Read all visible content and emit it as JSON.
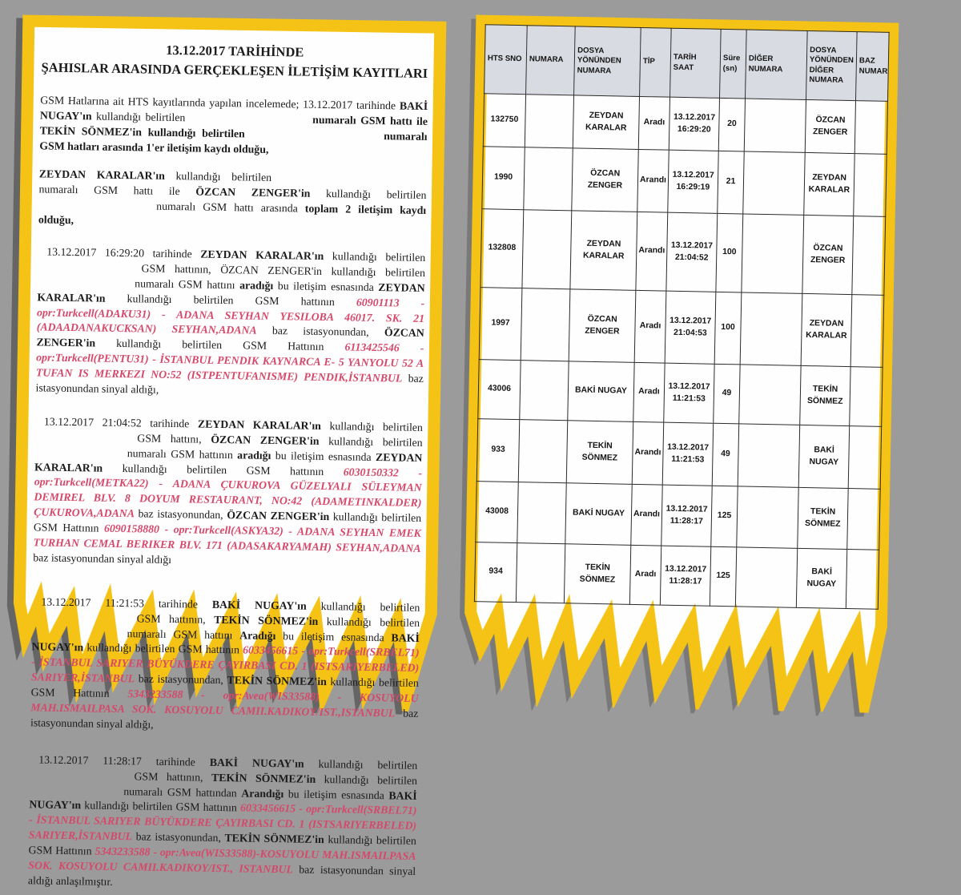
{
  "colors": {
    "background": "#9b9b9b",
    "paper": "#fefefe",
    "border_yellow": "#f5c315",
    "text": "#1b1b1b",
    "red_text": "#d6486a",
    "table_header_bg": "#d9dbe2",
    "table_line": "#2a2a2a"
  },
  "left_document": {
    "title_line1": "13.12.2017 TARİHİNDE",
    "title_line2": "ŞAHISLAR ARASINDA GERÇEKLEŞEN İLETİŞİM KAYITLARI",
    "paragraphs": [
      {
        "indent": false,
        "segments": [
          {
            "t": "GSM Hatlarına ait HTS kayıtlarında yapılan incelemede; 13.12.2017 tarihinde ",
            "s": "n"
          },
          {
            "t": "BAKİ NUGAY'ın",
            "s": "b"
          },
          {
            "t": " kullandığı belirtilen ",
            "s": "n"
          },
          {
            "gap": 148
          },
          {
            "t": " numaralı GSM hattı ile TEKİN SÖNMEZ'in kullandığı belirtilen ",
            "s": "b"
          },
          {
            "gap": 158
          },
          {
            "t": " numaralı GSM hatları arasında 1'er iletişim kaydı olduğu,",
            "s": "b"
          }
        ]
      },
      {
        "indent": false,
        "segments": [
          {
            "t": "ZEYDAN KARALAR'ın",
            "s": "b"
          },
          {
            "t": " kullandığı belirtilen ",
            "s": "n"
          },
          {
            "gap": 180
          },
          {
            "t": " numaralı GSM hattı ile ",
            "s": "n"
          },
          {
            "t": "ÖZCAN ZENGER'in",
            "s": "b"
          },
          {
            "t": " kullandığı belirtilen ",
            "s": "n"
          },
          {
            "gap": 138
          },
          {
            "t": " numaralı GSM hattı arasında ",
            "s": "n"
          },
          {
            "t": "toplam 2 iletişim kaydı olduğu,",
            "s": "b"
          }
        ]
      },
      {
        "indent": true,
        "segments": [
          {
            "t": "13.12.2017 16:29:20 tarihinde ",
            "s": "n"
          },
          {
            "t": "ZEYDAN KARALAR'ın",
            "s": "b"
          },
          {
            "t": " kullandığı belirtilen ",
            "s": "n"
          },
          {
            "gap": 118
          },
          {
            "t": " GSM hattının, ÖZCAN ZENGER'in kullandığı belirtilen ",
            "s": "n"
          },
          {
            "gap": 116
          },
          {
            "t": " numaralı GSM hattını ",
            "s": "n"
          },
          {
            "t": "aradığı",
            "s": "b"
          },
          {
            "t": " bu iletişim esnasında ",
            "s": "n"
          },
          {
            "t": "ZEYDAN KARALAR'ın",
            "s": "b"
          },
          {
            "t": " kullandığı belirtilen GSM hattının ",
            "s": "n"
          },
          {
            "t": "60901113 - opr:Turkcell(ADAKU31) - ADANA SEYHAN YESILOBA 46017. SK. 21 (ADAADANAKUCKSAN) SEYHAN,ADANA",
            "s": "r"
          },
          {
            "t": " baz istasyonundan, ",
            "s": "n"
          },
          {
            "t": "ÖZCAN ZENGER'in",
            "s": "b"
          },
          {
            "t": " kullandığı belirtilen GSM Hattının ",
            "s": "n"
          },
          {
            "t": "6113425546 - opr:Turkcell(PENTU31) - İSTANBUL PENDIK KAYNARCA E- 5 YANYOLU 52 A TUFAN IS MERKEZI NO:52 (ISTPENTUFANISME) PENDIK,İSTANBUL",
            "s": "r"
          },
          {
            "t": " baz istasyonundan sinyal aldığı,",
            "s": "n"
          }
        ]
      },
      {
        "indent": true,
        "segments": [
          {
            "t": "13.12.2017 21:04:52 tarihinde ",
            "s": "n"
          },
          {
            "t": "ZEYDAN KARALAR'ın",
            "s": "b"
          },
          {
            "t": " kullandığı belirtilen ",
            "s": "n"
          },
          {
            "gap": 116
          },
          {
            "t": " GSM hattını, ",
            "s": "n"
          },
          {
            "t": "ÖZCAN ZENGER'in",
            "s": "b"
          },
          {
            "t": " kullandığı belirtilen ",
            "s": "n"
          },
          {
            "gap": 110
          },
          {
            "t": " numaralı GSM hattının ",
            "s": "n"
          },
          {
            "t": "aradığı",
            "s": "b"
          },
          {
            "t": " bu iletişim esnasında ",
            "s": "n"
          },
          {
            "t": "ZEYDAN KARALAR'ın",
            "s": "b"
          },
          {
            "t": " kullandığı belirtilen GSM hattının ",
            "s": "n"
          },
          {
            "t": "6030150332 - opr:Turkcell(METKA22) - ADANA ÇUKUROVA GÜZELYALI SÜLEYMAN DEMIREL BLV. 8 DOYUM RESTAURANT, NO:42 (ADAMETINKALDER) ÇUKUROVA,ADANA",
            "s": "r"
          },
          {
            "t": " baz istasyonundan, ",
            "s": "n"
          },
          {
            "t": "ÖZCAN ZENGER'in",
            "s": "b"
          },
          {
            "t": " kullandığı belirtilen GSM Hattının ",
            "s": "n"
          },
          {
            "t": "6090158880 - opr:Turkcell(ASKYA32) - ADANA SEYHAN EMEK TURHAN CEMAL BERIKER BLV. 171 (ADASAKARYAMAH) SEYHAN,ADANA",
            "s": "r"
          },
          {
            "t": " baz istasyonundan sinyal aldığı",
            "s": "n"
          }
        ]
      },
      {
        "indent": true,
        "segments": [
          {
            "t": "13.12.2017 11:21:53 tarihinde ",
            "s": "n"
          },
          {
            "t": "BAKİ NUGAY'ın",
            "s": "b"
          },
          {
            "t": " kullandığı belirtilen ",
            "s": "n"
          },
          {
            "gap": 120
          },
          {
            "t": " GSM hattının, ",
            "s": "n"
          },
          {
            "t": "TEKİN SÖNMEZ'in",
            "s": "b"
          },
          {
            "t": " kullandığı belirtilen ",
            "s": "n"
          },
          {
            "gap": 110
          },
          {
            "t": " numaralı GSM hattını ",
            "s": "n"
          },
          {
            "t": "Aradığı",
            "s": "b"
          },
          {
            "t": " bu iletişim esnasında ",
            "s": "n"
          },
          {
            "t": "BAKİ NUGAY'ın",
            "s": "b"
          },
          {
            "t": " kullandığı belirtilen GSM hattının ",
            "s": "n"
          },
          {
            "t": "6033456615 - opr:Turkcell(SRBEL71) - İSTANBUL SARIYER BÜYÜKDERE ÇAYIRBASI CD. 1 (ISTSARIYERBELED) SARIYER,İSTANBUL",
            "s": "r"
          },
          {
            "t": " baz istasyonundan, ",
            "s": "n"
          },
          {
            "t": "TEKİN SÖNMEZ'in",
            "s": "b"
          },
          {
            "t": " kullandığı belirtilen GSM Hattının ",
            "s": "n"
          },
          {
            "t": "5343233588 - opr:Avea(WIS33588) - KOSUYOLU MAH.ISMAILPASA SOK. KOSUYOLU CAMII.KADIKOY/IST.,ISTANBUL",
            "s": "r"
          },
          {
            "t": " baz istasyonundan sinyal aldığı,",
            "s": "n"
          }
        ]
      },
      {
        "indent": true,
        "segments": [
          {
            "t": "13.12.2017 11:28:17 tarihinde ",
            "s": "n"
          },
          {
            "t": "BAKİ NUGAY'ın",
            "s": "b"
          },
          {
            "t": " kullandığı belirtilen ",
            "s": "n"
          },
          {
            "gap": 120
          },
          {
            "t": " GSM hattının, ",
            "s": "n"
          },
          {
            "t": "TEKİN SÖNMEZ'in",
            "s": "b"
          },
          {
            "t": " kullandığı belirtilen ",
            "s": "n"
          },
          {
            "gap": 112
          },
          {
            "t": " numaralı GSM hattından ",
            "s": "n"
          },
          {
            "t": "Arandığı",
            "s": "b"
          },
          {
            "t": " bu iletişim esnasında ",
            "s": "n"
          },
          {
            "t": "BAKİ NUGAY'ın",
            "s": "b"
          },
          {
            "t": " kullandığı belirtilen GSM hattının ",
            "s": "n"
          },
          {
            "t": "6033456615 - opr:Turkcell(SRBEL71) - İSTANBUL SARIYER BÜYÜKDERE ÇAYIRBASI CD. 1 (ISTSARIYERBELED) SARIYER,İSTANBUL",
            "s": "r"
          },
          {
            "t": " baz istasyonundan, ",
            "s": "n"
          },
          {
            "t": "TEKİN SÖNMEZ'in",
            "s": "b"
          },
          {
            "t": " kullandığı belirtilen GSM Hattının ",
            "s": "n"
          },
          {
            "t": "5343233588 - opr:Avea(WIS33588)-KOSUYOLU MAH.ISMAILPASA SOK. KOSUYOLU CAMII.KADIKOY/IST., ISTANBUL",
            "s": "r"
          },
          {
            "t": " baz istasyonundan sinyal aldığı anlaşılmıştır.",
            "s": "n"
          }
        ]
      }
    ]
  },
  "right_document": {
    "table": {
      "headers": [
        "HTS SNO",
        "NUMARA",
        "DOSYA YÖNÜNDEN NUMARA",
        "TİP",
        "TARİH SAAT",
        "Süre (sn)",
        "DİĞER NUMARA",
        "DOSYA YÖNÜNDEN DİĞER NUMARA",
        "BAZ NUMARA"
      ],
      "rows": [
        {
          "sno": "132750",
          "numara": "",
          "dosya": "ZEYDAN KARALAR",
          "tip": "Aradı",
          "tarih": "13.12.2017",
          "saat": "16:29:20",
          "sure": "20",
          "diger": "",
          "dosya_diger": "ÖZCAN ZENGER",
          "baz": ""
        },
        {
          "sno": "1990",
          "numara": "",
          "dosya": "ÖZCAN ZENGER",
          "tip": "Arandı",
          "tarih": "13.12.2017",
          "saat": "16:29:19",
          "sure": "21",
          "diger": "",
          "dosya_diger": "ZEYDAN KARALAR",
          "baz": ""
        },
        {
          "sno": "132808",
          "numara": "",
          "dosya": "ZEYDAN KARALAR",
          "tip": "Arandı",
          "tarih": "13.12.2017",
          "saat": "21:04:52",
          "sure": "100",
          "diger": "",
          "dosya_diger": "ÖZCAN ZENGER",
          "baz": ""
        },
        {
          "sno": "1997",
          "numara": "",
          "dosya": "ÖZCAN ZENGER",
          "tip": "Aradı",
          "tarih": "13.12.2017",
          "saat": "21:04:53",
          "sure": "100",
          "diger": "",
          "dosya_diger": "ZEYDAN KARALAR",
          "baz": ""
        },
        {
          "sno": "43006",
          "numara": "",
          "dosya": "BAKİ NUGAY",
          "tip": "Aradı",
          "tarih": "13.12.2017",
          "saat": "11:21:53",
          "sure": "49",
          "diger": "",
          "dosya_diger": "TEKİN SÖNMEZ",
          "baz": ""
        },
        {
          "sno": "933",
          "numara": "",
          "dosya": "TEKİN SÖNMEZ",
          "tip": "Arandı",
          "tarih": "13.12.2017",
          "saat": "11:21:53",
          "sure": "49",
          "diger": "",
          "dosya_diger": "BAKİ NUGAY",
          "baz": ""
        },
        {
          "sno": "43008",
          "numara": "",
          "dosya": "BAKİ NUGAY",
          "tip": "Arandı",
          "tarih": "13.12.2017",
          "saat": "11:28:17",
          "sure": "125",
          "diger": "",
          "dosya_diger": "TEKİN SÖNMEZ",
          "baz": ""
        },
        {
          "sno": "934",
          "numara": "",
          "dosya": "TEKİN SÖNMEZ",
          "tip": "Aradı",
          "tarih": "13.12.2017",
          "saat": "11:28:17",
          "sure": "125",
          "diger": "",
          "dosya_diger": "BAKİ NUGAY",
          "baz": ""
        }
      ]
    }
  }
}
